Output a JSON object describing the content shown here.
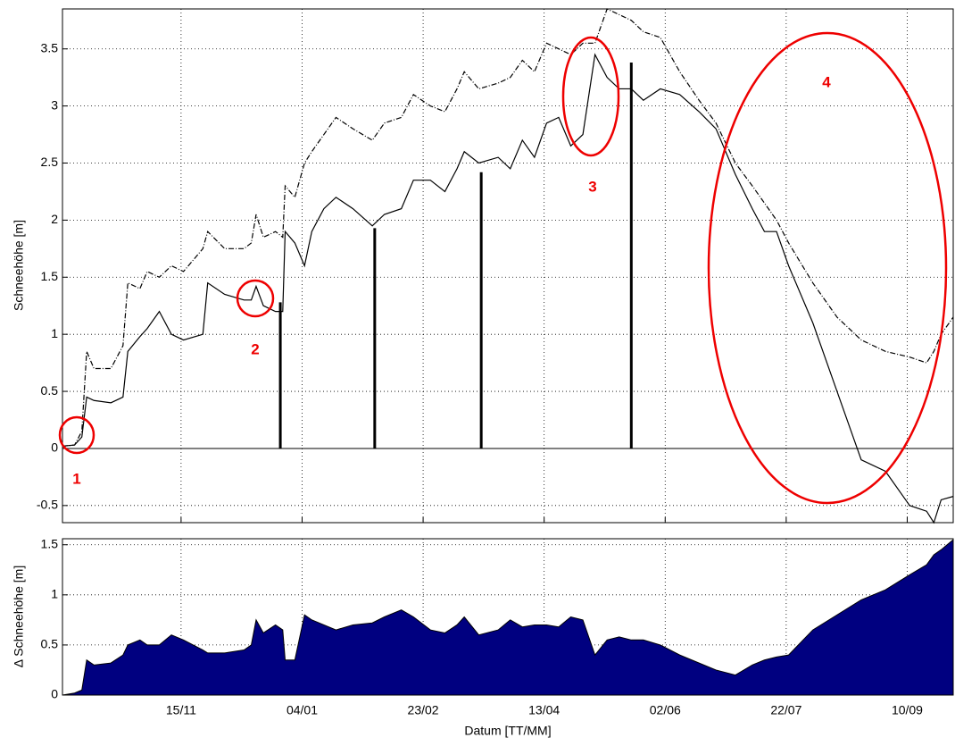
{
  "chart_data": [
    {
      "type": "line",
      "ylabel": "Schneehöhe [m]",
      "xlim": [
        0,
        368
      ],
      "ylim": [
        -0.65,
        3.85
      ],
      "xticks": [
        {
          "value": 49,
          "label": "15/11"
        },
        {
          "value": 99,
          "label": "04/01"
        },
        {
          "value": 149,
          "label": "23/02"
        },
        {
          "value": 199,
          "label": "13/04"
        },
        {
          "value": 249,
          "label": "02/06"
        },
        {
          "value": 299,
          "label": "22/07"
        },
        {
          "value": 349,
          "label": "10/09"
        }
      ],
      "yticks": [
        -0.5,
        0,
        0.5,
        1,
        1.5,
        2,
        2.5,
        3,
        3.5
      ],
      "grid": true,
      "x": [
        0,
        5,
        8,
        10,
        13,
        20,
        25,
        27,
        32,
        35,
        40,
        45,
        50,
        58,
        60,
        67,
        75,
        78,
        80,
        83,
        88,
        91,
        92,
        96,
        100,
        103,
        108,
        113,
        120,
        128,
        133,
        140,
        145,
        152,
        158,
        163,
        166,
        172,
        180,
        185,
        190,
        195,
        200,
        205,
        210,
        215,
        220,
        225,
        230,
        235,
        240,
        247,
        255,
        263,
        270,
        278,
        285,
        290,
        295,
        300,
        310,
        320,
        330,
        340,
        350,
        357,
        360,
        363,
        368
      ],
      "series": [
        {
          "color": "#000000",
          "style": "solid",
          "values": [
            0.02,
            0.03,
            0.1,
            0.45,
            0.42,
            0.4,
            0.45,
            0.85,
            0.98,
            1.05,
            1.2,
            1.0,
            0.95,
            1.0,
            1.45,
            1.35,
            1.3,
            1.3,
            1.42,
            1.25,
            1.2,
            1.2,
            1.9,
            1.8,
            1.6,
            1.9,
            2.1,
            2.2,
            2.1,
            1.95,
            2.05,
            2.1,
            2.35,
            2.35,
            2.25,
            2.45,
            2.6,
            2.5,
            2.55,
            2.45,
            2.7,
            2.55,
            2.85,
            2.9,
            2.65,
            2.75,
            3.45,
            3.25,
            3.15,
            3.15,
            3.05,
            3.15,
            3.1,
            2.95,
            2.8,
            2.4,
            2.1,
            1.9,
            1.9,
            1.6,
            1.1,
            0.5,
            -0.1,
            -0.2,
            -0.5,
            -0.55,
            -0.65,
            -0.45,
            -0.42
          ]
        },
        {
          "color": "#000000",
          "style": "dashdot",
          "values": [
            0.02,
            0.03,
            0.15,
            0.85,
            0.7,
            0.7,
            0.9,
            1.45,
            1.4,
            1.55,
            1.5,
            1.6,
            1.55,
            1.75,
            1.9,
            1.75,
            1.75,
            1.8,
            2.05,
            1.85,
            1.9,
            1.85,
            2.3,
            2.2,
            2.5,
            2.6,
            2.75,
            2.9,
            2.8,
            2.7,
            2.85,
            2.9,
            3.1,
            3.0,
            2.95,
            3.15,
            3.3,
            3.15,
            3.2,
            3.25,
            3.4,
            3.3,
            3.55,
            3.5,
            3.45,
            3.55,
            3.55,
            3.85,
            3.8,
            3.75,
            3.65,
            3.6,
            3.3,
            3.05,
            2.85,
            2.5,
            2.3,
            2.15,
            2.0,
            1.8,
            1.45,
            1.15,
            0.95,
            0.85,
            0.8,
            0.75,
            0.85,
            1.0,
            1.15
          ]
        }
      ],
      "measurements": {
        "color": "#000000",
        "x": [
          90,
          129,
          173,
          235
        ],
        "values": [
          1.28,
          1.93,
          2.42,
          3.38
        ]
      },
      "annotations": [
        "1",
        "2",
        "3",
        "4"
      ]
    },
    {
      "type": "area",
      "ylabel": "Δ Schneehöhe [m]",
      "xlabel": "Datum [TT/MM]",
      "xlim": [
        0,
        368
      ],
      "ylim": [
        0,
        1.56
      ],
      "xticks": [
        {
          "value": 49,
          "label": "15/11"
        },
        {
          "value": 99,
          "label": "04/01"
        },
        {
          "value": 149,
          "label": "23/02"
        },
        {
          "value": 199,
          "label": "13/04"
        },
        {
          "value": 249,
          "label": "02/06"
        },
        {
          "value": 299,
          "label": "22/07"
        },
        {
          "value": 349,
          "label": "10/09"
        }
      ],
      "yticks": [
        0,
        0.5,
        1,
        1.5
      ],
      "grid": true,
      "color": "#000080",
      "x": [
        0,
        5,
        8,
        10,
        13,
        20,
        25,
        27,
        32,
        35,
        40,
        45,
        50,
        58,
        60,
        67,
        75,
        78,
        80,
        83,
        88,
        91,
        92,
        96,
        100,
        103,
        108,
        113,
        120,
        128,
        133,
        140,
        145,
        152,
        158,
        163,
        166,
        172,
        180,
        185,
        190,
        195,
        200,
        205,
        210,
        215,
        220,
        225,
        230,
        235,
        240,
        247,
        255,
        263,
        270,
        278,
        285,
        290,
        295,
        300,
        310,
        320,
        330,
        340,
        350,
        357,
        360,
        363,
        368
      ],
      "values": [
        0,
        0.02,
        0.05,
        0.35,
        0.3,
        0.32,
        0.4,
        0.5,
        0.55,
        0.5,
        0.5,
        0.6,
        0.55,
        0.45,
        0.42,
        0.42,
        0.45,
        0.5,
        0.75,
        0.62,
        0.7,
        0.65,
        0.35,
        0.35,
        0.8,
        0.75,
        0.7,
        0.65,
        0.7,
        0.72,
        0.78,
        0.85,
        0.78,
        0.65,
        0.62,
        0.7,
        0.78,
        0.6,
        0.65,
        0.75,
        0.68,
        0.7,
        0.7,
        0.68,
        0.78,
        0.75,
        0.4,
        0.55,
        0.58,
        0.55,
        0.55,
        0.5,
        0.4,
        0.32,
        0.25,
        0.2,
        0.3,
        0.35,
        0.38,
        0.4,
        0.65,
        0.8,
        0.95,
        1.05,
        1.2,
        1.3,
        1.4,
        1.45,
        1.55
      ]
    }
  ]
}
